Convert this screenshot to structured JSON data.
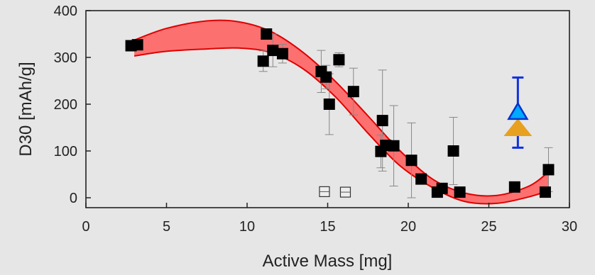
{
  "chart_data": {
    "type": "scatter",
    "title": "",
    "xlabel": "Active Mass [mg]",
    "ylabel": "D30 [mAh/g]",
    "xlim": [
      0,
      30
    ],
    "ylim": [
      -20,
      400
    ],
    "xticks": [
      0,
      5,
      10,
      15,
      20,
      25,
      30
    ],
    "yticks": [
      0,
      100,
      200,
      300,
      400
    ],
    "grid": false,
    "legend": "none",
    "colors": {
      "filled_marker": "#000000",
      "band_fill": "#ff5a5a",
      "band_edge": "#e00000",
      "triangle_blue": "#00aaff",
      "triangle_blue_edge": "#0033cc",
      "triangle_orange": "#e8a020",
      "errorbar_blue": "#1030e0"
    },
    "series": [
      {
        "marker": "filled-square",
        "points": [
          {
            "x": 2.8,
            "y": 325
          },
          {
            "x": 3.2,
            "y": 327
          },
          {
            "x": 11.0,
            "y": 292,
            "err": 22
          },
          {
            "x": 11.2,
            "y": 350
          },
          {
            "x": 11.6,
            "y": 315,
            "err": 35
          },
          {
            "x": 12.2,
            "y": 308,
            "err": 20
          },
          {
            "x": 14.6,
            "y": 270,
            "err": 45
          },
          {
            "x": 14.9,
            "y": 258,
            "err": 25
          },
          {
            "x": 15.1,
            "y": 200,
            "err": 65
          },
          {
            "x": 15.7,
            "y": 295,
            "err": 15
          },
          {
            "x": 16.6,
            "y": 227,
            "err": 50
          },
          {
            "x": 18.3,
            "y": 99,
            "err": 35
          },
          {
            "x": 18.4,
            "y": 165,
            "err": 108
          },
          {
            "x": 18.6,
            "y": 112
          },
          {
            "x": 19.1,
            "y": 111,
            "err": 86
          },
          {
            "x": 20.2,
            "y": 80,
            "err": 80
          },
          {
            "x": 20.8,
            "y": 40
          },
          {
            "x": 21.8,
            "y": 12
          },
          {
            "x": 22.1,
            "y": 20
          },
          {
            "x": 22.8,
            "y": 100,
            "err": 72
          },
          {
            "x": 23.2,
            "y": 12
          },
          {
            "x": 26.6,
            "y": 23
          },
          {
            "x": 28.5,
            "y": 12
          },
          {
            "x": 28.7,
            "y": 60,
            "err": 47
          }
        ]
      },
      {
        "marker": "open-square",
        "points": [
          {
            "x": 14.8,
            "y": 13
          },
          {
            "x": 16.1,
            "y": 12
          }
        ]
      },
      {
        "marker": "open-triangle-blue",
        "points": [
          {
            "x": 26.8,
            "y": 182,
            "err": 75
          }
        ]
      },
      {
        "marker": "filled-triangle-orange",
        "points": [
          {
            "x": 26.8,
            "y": 150
          }
        ]
      }
    ],
    "band": {
      "upper": [
        [
          3.0,
          337
        ],
        [
          5.0,
          362
        ],
        [
          7.5,
          378
        ],
        [
          9.5,
          376
        ],
        [
          11.5,
          355
        ],
        [
          13.5,
          310
        ],
        [
          15.5,
          248
        ],
        [
          17.5,
          175
        ],
        [
          19.5,
          100
        ],
        [
          21.5,
          40
        ],
        [
          23.5,
          10
        ],
        [
          25.5,
          5
        ],
        [
          27.5,
          25
        ],
        [
          28.7,
          55
        ]
      ],
      "lower": [
        [
          3.0,
          303
        ],
        [
          5.0,
          313
        ],
        [
          7.5,
          318
        ],
        [
          9.5,
          320
        ],
        [
          11.5,
          310
        ],
        [
          13.5,
          275
        ],
        [
          15.5,
          215
        ],
        [
          17.5,
          138
        ],
        [
          19.5,
          68
        ],
        [
          21.5,
          22
        ],
        [
          23.5,
          -8
        ],
        [
          25.5,
          -12
        ],
        [
          27.5,
          2
        ],
        [
          28.7,
          15
        ]
      ]
    }
  }
}
